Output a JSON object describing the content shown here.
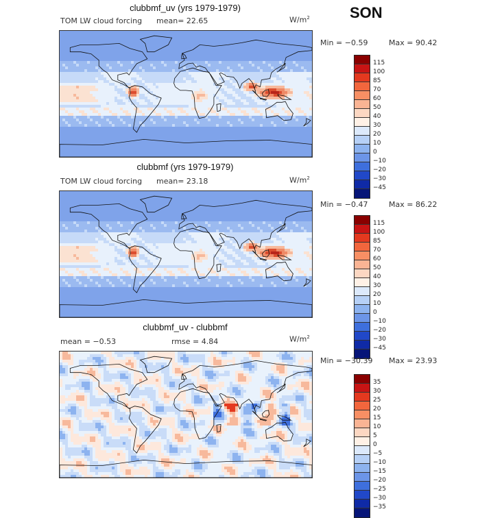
{
  "season": "SON",
  "panels": [
    {
      "title": "clubbmf_uv (yrs 1979-1979)",
      "left_text": "TOM LW cloud forcing",
      "mean_text": "mean=  22.65",
      "right_text": "",
      "unit": "W/m",
      "unit_exp": "2",
      "min_text": "Min =  −0.59",
      "max_text": "Max =  90.42",
      "colorbar": {
        "labels": [
          "115",
          "100",
          "85",
          "70",
          "60",
          "50",
          "40",
          "30",
          "20",
          "10",
          "0",
          "−10",
          "−20",
          "−30",
          "−45"
        ],
        "colors": [
          "#8a0000",
          "#c81414",
          "#e4391f",
          "#f2663d",
          "#f78f64",
          "#fab494",
          "#fcd7c2",
          "#fff1e6",
          "#dce9fb",
          "#b6d0f6",
          "#8db3ef",
          "#6c95e8",
          "#3e6fdd",
          "#2148c8",
          "#0f2aa6",
          "#061578"
        ]
      },
      "palette": [
        "#7fa3ea",
        "#9bbaf0",
        "#c6daf8",
        "#e8f1fc",
        "#fbe2d2",
        "#f7b99c",
        "#ef8a66",
        "#dc4d2f",
        "#b8261a"
      ]
    },
    {
      "title": "clubbmf (yrs 1979-1979)",
      "left_text": "TOM LW cloud forcing",
      "mean_text": "mean=  23.18",
      "right_text": "",
      "unit": "W/m",
      "unit_exp": "2",
      "min_text": "Min =  −0.47",
      "max_text": "Max =  86.22",
      "colorbar": {
        "labels": [
          "115",
          "100",
          "85",
          "70",
          "60",
          "50",
          "40",
          "30",
          "20",
          "10",
          "0",
          "−10",
          "−20",
          "−30",
          "−45"
        ],
        "colors": [
          "#8a0000",
          "#c81414",
          "#e4391f",
          "#f2663d",
          "#f78f64",
          "#fab494",
          "#fcd7c2",
          "#fff1e6",
          "#dce9fb",
          "#b6d0f6",
          "#8db3ef",
          "#6c95e8",
          "#3e6fdd",
          "#2148c8",
          "#0f2aa6",
          "#061578"
        ]
      },
      "palette": [
        "#7fa3ea",
        "#9bbaf0",
        "#c6daf8",
        "#e8f1fc",
        "#fbe2d2",
        "#f7b99c",
        "#ef8a66",
        "#dc4d2f",
        "#b8261a"
      ]
    },
    {
      "title": "clubbmf_uv - clubbmf",
      "left_text": "mean =  −0.53",
      "mean_text": "",
      "right_text": "rmse =   4.84",
      "unit": "W/m",
      "unit_exp": "2",
      "min_text": "Min = −30.39",
      "max_text": "Max =  23.93",
      "colorbar": {
        "labels": [
          "35",
          "30",
          "25",
          "20",
          "15",
          "10",
          "5",
          "0",
          "−5",
          "−10",
          "−15",
          "−20",
          "−25",
          "−30",
          "−35"
        ],
        "colors": [
          "#8a0000",
          "#c81414",
          "#e4391f",
          "#f2663d",
          "#f78f64",
          "#fab494",
          "#fcd7c2",
          "#fff1e6",
          "#dce9fb",
          "#b6d0f6",
          "#8db3ef",
          "#6c95e8",
          "#3e6fdd",
          "#2148c8",
          "#0f2aa6",
          "#061578"
        ]
      },
      "palette": [
        "#3e6fdd",
        "#8db3ef",
        "#c9dcf8",
        "#e9f2fc",
        "#fde8dc",
        "#f7b99c",
        "#e4391f"
      ]
    }
  ]
}
